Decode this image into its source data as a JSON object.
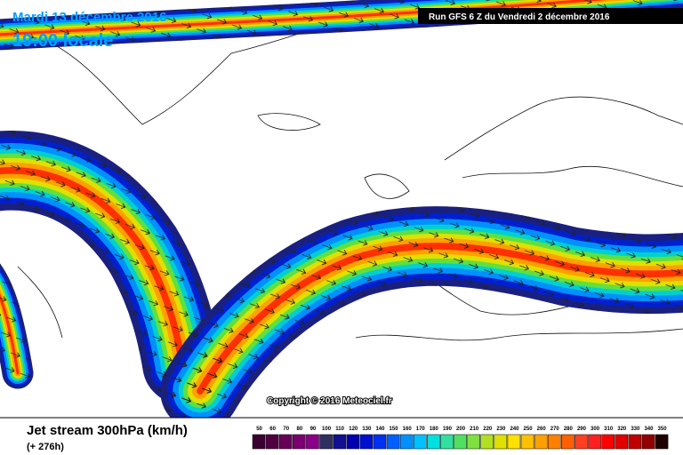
{
  "header": {
    "date": "Mardi 13 décembre 2016",
    "time": "19:00 locale",
    "run": "Run GFS 6 Z du Vendredi 2 décembre 2016"
  },
  "copyright": "Copyright © 2016 Meteociel.fr",
  "footer": {
    "title": "Jet stream 300hPa (km/h)",
    "lead": "(+ 276h)"
  },
  "legend": {
    "labels": [
      50,
      60,
      70,
      80,
      90,
      100,
      110,
      120,
      130,
      140,
      150,
      160,
      170,
      180,
      190,
      200,
      210,
      220,
      230,
      240,
      250,
      260,
      270,
      280,
      290,
      300,
      310,
      320,
      330,
      340,
      350
    ],
    "colors": [
      "#3a0030",
      "#500040",
      "#680058",
      "#7a0070",
      "#8a0088",
      "#303060",
      "#101090",
      "#0000b0",
      "#0010d0",
      "#0030f0",
      "#0060ff",
      "#0090ff",
      "#00c0ff",
      "#00e0e0",
      "#30e0a0",
      "#50e060",
      "#80e040",
      "#b0e020",
      "#e0e000",
      "#ffe000",
      "#ffc000",
      "#ffa000",
      "#ff8000",
      "#ff6000",
      "#ff4020",
      "#ff2020",
      "#ff0000",
      "#e00000",
      "#c00000",
      "#900000",
      "#200000"
    ]
  }
}
